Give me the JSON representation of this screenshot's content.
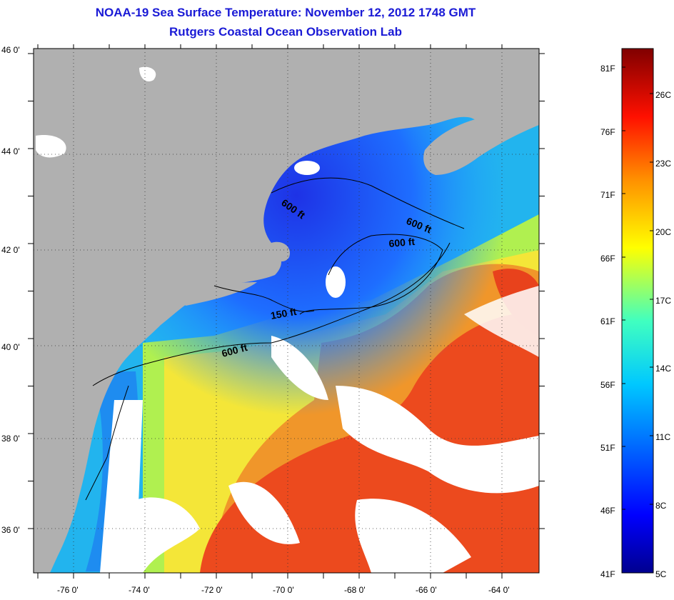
{
  "header": {
    "title": "NOAA-19 Sea Surface Temperature:  November 12, 2012 1748 GMT",
    "subtitle": "Rutgers Coastal Ocean Observation Lab"
  },
  "map": {
    "lon_labels": [
      "-76 0'",
      "-74 0'",
      "-72 0'",
      "-70 0'",
      "-68 0'",
      "-66 0'",
      "-64 0'"
    ],
    "lat_labels": [
      "46 0'",
      "44 0'",
      "42 0'",
      "40 0'",
      "38 0'",
      "36 0'"
    ],
    "contour_labels": [
      "600 ft",
      "600 ft",
      "600 ft",
      "150 ft",
      "600 ft"
    ],
    "colors": {
      "land": "#b0b0b0",
      "cloud": "#ffffff",
      "cold": "#1e3cf0",
      "warm": "#e8281e"
    }
  },
  "colorbar": {
    "fahrenheit": [
      "81F",
      "76F",
      "71F",
      "66F",
      "61F",
      "56F",
      "51F",
      "46F",
      "41F"
    ],
    "celsius": [
      "26C",
      "23C",
      "20C",
      "17C",
      "14C",
      "11C",
      "8C",
      "5C"
    ],
    "min_c": 5,
    "max_c": 28
  }
}
